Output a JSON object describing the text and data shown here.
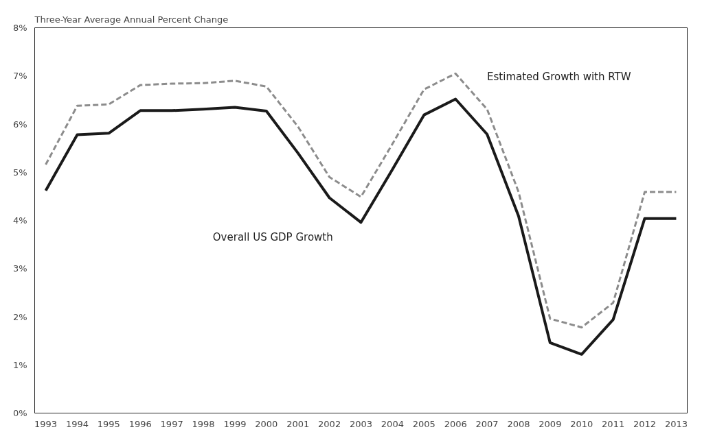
{
  "chart_data": {
    "type": "line",
    "title": "Three-Year Average Annual Percent Change",
    "categories": [
      "1993",
      "1994",
      "1995",
      "1996",
      "1997",
      "1998",
      "1999",
      "2000",
      "2001",
      "2002",
      "2003",
      "2004",
      "2005",
      "2006",
      "2007",
      "2008",
      "2009",
      "2010",
      "2011",
      "2012",
      "2013"
    ],
    "series": [
      {
        "name": "Overall US GDP Growth",
        "color": "#1a1a1a",
        "line_style": "solid",
        "values": [
          4.62,
          5.78,
          5.81,
          6.28,
          6.28,
          6.31,
          6.35,
          6.27,
          5.4,
          4.47,
          3.96,
          5.06,
          6.19,
          6.52,
          5.79,
          4.09,
          1.46,
          1.22,
          1.94,
          4.04,
          4.04
        ]
      },
      {
        "name": "Estimated Growth with RTW",
        "color": "#8c8c8c",
        "line_style": "dashed",
        "values": [
          5.16,
          6.38,
          6.41,
          6.81,
          6.84,
          6.85,
          6.9,
          6.78,
          5.95,
          4.9,
          4.49,
          5.59,
          6.72,
          7.05,
          6.31,
          4.59,
          1.96,
          1.78,
          2.29,
          4.59,
          4.59
        ]
      }
    ],
    "ylim": [
      0,
      8
    ],
    "yticks": [
      {
        "value": 0,
        "label": "0%"
      },
      {
        "value": 1,
        "label": "1%"
      },
      {
        "value": 2,
        "label": "2%"
      },
      {
        "value": 3,
        "label": "3%"
      },
      {
        "value": 4,
        "label": "4%"
      },
      {
        "value": 5,
        "label": "5%"
      },
      {
        "value": 6,
        "label": "6%"
      },
      {
        "value": 7,
        "label": "7%"
      },
      {
        "value": 8,
        "label": "8%"
      }
    ],
    "grid": false,
    "marker": "none"
  }
}
